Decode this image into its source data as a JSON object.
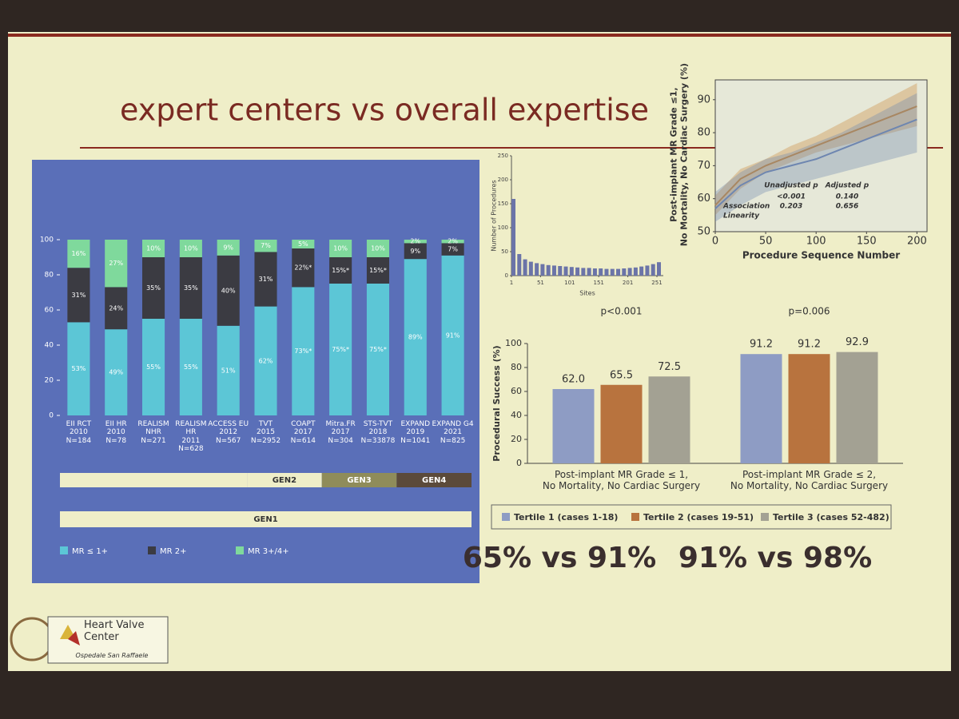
{
  "slide": {
    "title": "expert centers vs overall expertise",
    "gen_labels": [
      "GEN1",
      "GEN2",
      "GEN3",
      "GEN4"
    ],
    "summaries": [
      "65% vs 91%",
      "91% vs 98%"
    ],
    "logo": {
      "name": "Heart Valve\nCenter",
      "subtitle": "Ospedale San Raffaele"
    }
  },
  "chart_data": [
    {
      "type": "stacked-bar",
      "categories": [
        "EII RCT\n2010\nN=184",
        "EII HR\n2010\nN=78",
        "REALISM\nNHR\nN=271",
        "REALISM HR\n2011\nN=628",
        "ACCESS EU\n2012\nN=567",
        "TVT\n2015\nN=2952",
        "COAPT\n2017\nN=614",
        "Mitra.FR\n2017\nN=304",
        "STS-TVT\n2018\nN=33878",
        "EXPAND\n2019\nN=1041",
        "EXPAND G4\n2021\nN=825"
      ],
      "series": [
        {
          "name": "MR ≤ 1+",
          "color": "#5cc6d6",
          "values": [
            53,
            49,
            55,
            55,
            51,
            62,
            73,
            75,
            75,
            89,
            91
          ],
          "value_labels": [
            "53%",
            "49%",
            "55%",
            "55%",
            "51%",
            "62%",
            "73%*",
            "75%*",
            "75%*",
            "89%",
            "91%"
          ]
        },
        {
          "name": "MR 2+",
          "color": "#3b3b42",
          "values": [
            31,
            24,
            35,
            35,
            40,
            31,
            22,
            15,
            15,
            9,
            7
          ],
          "value_labels": [
            "31%",
            "24%",
            "35%",
            "35%",
            "40%",
            "31%",
            "22%*",
            "15%*",
            "15%*",
            "9%",
            "7%"
          ]
        },
        {
          "name": "MR 3+/4+",
          "color": "#7fd99c",
          "values": [
            16,
            27,
            10,
            10,
            9,
            7,
            5,
            10,
            10,
            2,
            2
          ],
          "value_labels": [
            "16%",
            "27%",
            "10%",
            "10%",
            "9%",
            "7%",
            "5%",
            "10%",
            "10%",
            "2%",
            "2%"
          ]
        }
      ],
      "ylim": [
        0,
        100
      ],
      "yticks": [
        0,
        20,
        40,
        60,
        80,
        100
      ]
    },
    {
      "type": "bar",
      "xlabel": "Sites",
      "ylabel": "Number of Procedures",
      "x": [
        1,
        11,
        21,
        31,
        41,
        51,
        61,
        71,
        81,
        91,
        101,
        111,
        121,
        131,
        141,
        151,
        161,
        171,
        181,
        191,
        201,
        211,
        221,
        231,
        241,
        251
      ],
      "values": [
        160,
        45,
        34,
        29,
        26,
        24,
        22,
        21,
        20,
        19,
        18,
        17,
        16,
        16,
        15,
        15,
        14,
        14,
        14,
        15,
        16,
        17,
        19,
        21,
        24,
        28
      ],
      "color": "#6b74a8",
      "xlim": [
        1,
        262
      ],
      "xticks": [
        1,
        51,
        101,
        151,
        201,
        251
      ],
      "ylim": [
        0,
        250
      ],
      "yticks": [
        0,
        50,
        100,
        150,
        200,
        250
      ]
    },
    {
      "type": "line",
      "xlabel": "Procedure Sequence Number",
      "ylabel": "Post-implant MR Grade ≤1,\nNo Mortality, No Cardiac Surgery (%)",
      "x": [
        0,
        25,
        50,
        75,
        100,
        125,
        150,
        175,
        200
      ],
      "series": [
        {
          "color": "#c8873a",
          "values": [
            58,
            66,
            70,
            73,
            76,
            79,
            82,
            85,
            88
          ],
          "lower": [
            55,
            63,
            68,
            71,
            74,
            76,
            78,
            80,
            82
          ],
          "upper": [
            61,
            69,
            72,
            76,
            79,
            83,
            87,
            91,
            95
          ]
        },
        {
          "color": "#6e86b0",
          "values": [
            57,
            64,
            68,
            70,
            72,
            75,
            78,
            81,
            84
          ],
          "lower": [
            53,
            58,
            62,
            64,
            66,
            68,
            70,
            72,
            74
          ],
          "upper": [
            62,
            68,
            72,
            74,
            77,
            80,
            84,
            88,
            92
          ]
        }
      ],
      "xlim": [
        0,
        210
      ],
      "xticks": [
        0,
        50,
        100,
        150,
        200
      ],
      "ylim": [
        50,
        96
      ],
      "yticks": [
        50,
        60,
        70,
        80,
        90
      ],
      "stats": {
        "headers": [
          "Unadjusted p",
          "Adjusted p"
        ],
        "rows": [
          {
            "label": "Association",
            "values": [
              "<0.001",
              "0.140"
            ]
          },
          {
            "label": "Linearity",
            "values": [
              "0.203",
              "0.656"
            ]
          }
        ]
      }
    },
    {
      "type": "grouped-bar",
      "ylabel": "Procedural Success (%)",
      "categories": [
        "Post-implant MR Grade ≤ 1,\nNo Mortality, No Cardiac Surgery",
        "Post-implant MR Grade ≤ 2,\nNo Mortality, No Cardiac Surgery"
      ],
      "series": [
        {
          "name": "Tertile 1 (cases 1-18)",
          "color": "#8e9cc4",
          "values": [
            62,
            91.2
          ],
          "value_labels": [
            "62.0",
            "91.2"
          ]
        },
        {
          "name": "Tertile 2 (cases 19-51)",
          "color": "#b8733e",
          "values": [
            65.5,
            91.2
          ]
        },
        {
          "name": "Tertile 3 (cases 52-482)",
          "color": "#a3a193",
          "values": [
            72.5,
            92.9
          ]
        }
      ],
      "annotations": [
        "p<0.001",
        "p=0.006"
      ],
      "ylim": [
        0,
        100
      ],
      "yticks": [
        0,
        20,
        40,
        60,
        80,
        100
      ]
    }
  ]
}
